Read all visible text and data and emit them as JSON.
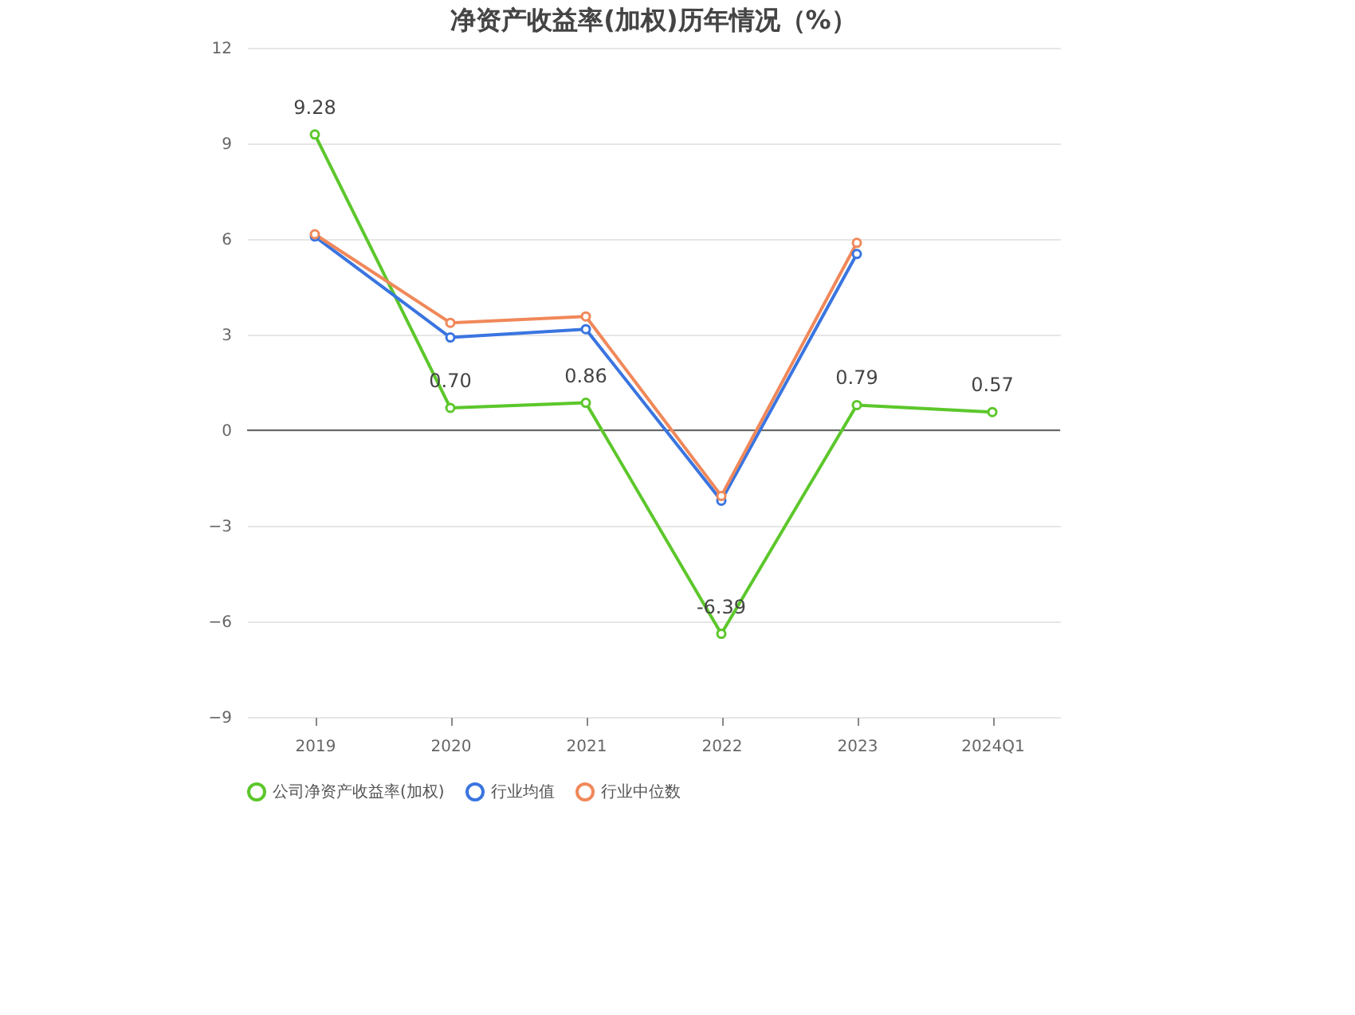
{
  "chart_data": {
    "type": "line",
    "title": "净资产收益率(加权)历年情况（%）",
    "categories": [
      "2019",
      "2020",
      "2021",
      "2022",
      "2023",
      "2024Q1"
    ],
    "series": [
      {
        "name": "公司净资产收益率(加权)",
        "color": "#5cc72b",
        "values": [
          9.28,
          0.7,
          0.86,
          -6.39,
          0.79,
          0.57
        ],
        "value_labels": [
          "9.28",
          "0.70",
          "0.86",
          "-6.39",
          "0.79",
          "0.57"
        ]
      },
      {
        "name": "行业均值",
        "color": "#3a75e0",
        "values": [
          6.08,
          2.91,
          3.17,
          -2.21,
          5.53,
          null
        ]
      },
      {
        "name": "行业中位数",
        "color": "#f0885a",
        "values": [
          6.15,
          3.37,
          3.57,
          -2.06,
          5.88,
          null
        ]
      }
    ],
    "ylim": [
      -9,
      12
    ],
    "yticks": [
      -9,
      -6,
      -3,
      0,
      3,
      6,
      9,
      12
    ],
    "ref_lines": [
      {
        "axis": "y",
        "value": 0,
        "color": "#666666"
      }
    ],
    "grid": "y",
    "legend": "bottom",
    "marker": "circle",
    "line_style": "solid"
  }
}
